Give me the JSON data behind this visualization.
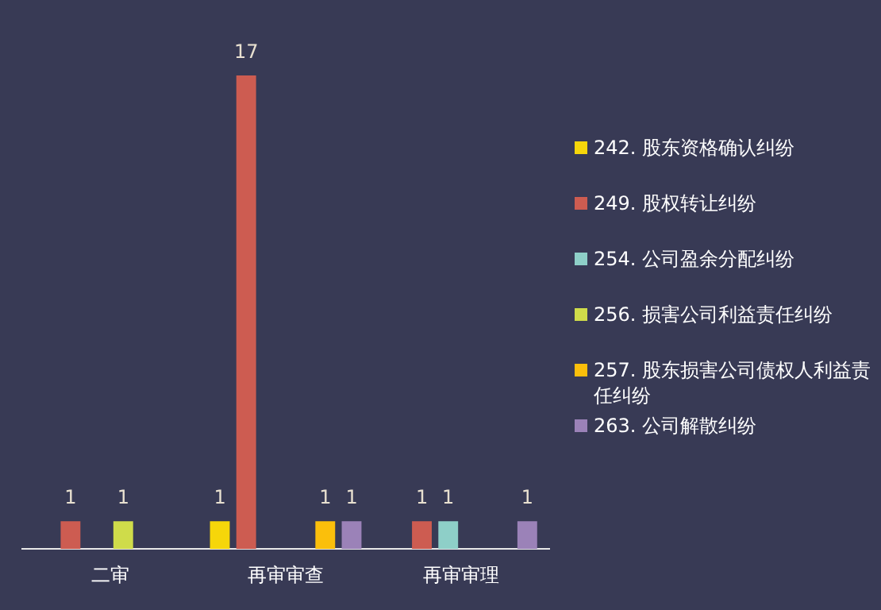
{
  "chart_data": {
    "type": "bar",
    "categories": [
      "二审",
      "再审审查",
      "再审审理"
    ],
    "series": [
      {
        "name": "242. 股东资格确认纠纷",
        "color": "#f6d60a",
        "values": [
          null,
          1,
          null
        ]
      },
      {
        "name": "249. 股权转让纠纷",
        "color": "#cd5c51",
        "values": [
          1,
          17,
          1
        ]
      },
      {
        "name": "254. 公司盈余分配纠纷",
        "color": "#8ecfc8",
        "values": [
          null,
          null,
          1
        ]
      },
      {
        "name": "256. 损害公司利益责任纠纷",
        "color": "#cfdc4a",
        "values": [
          1,
          null,
          null
        ]
      },
      {
        "name": "257. 股东损害公司债权人利益责任纠纷",
        "color": "#fbbf0b",
        "values": [
          null,
          1,
          null
        ]
      },
      {
        "name": "263. 公司解散纠纷",
        "color": "#9b82b8",
        "values": [
          null,
          1,
          1
        ]
      }
    ],
    "data_labels": true,
    "legend": "right",
    "grid": false
  }
}
